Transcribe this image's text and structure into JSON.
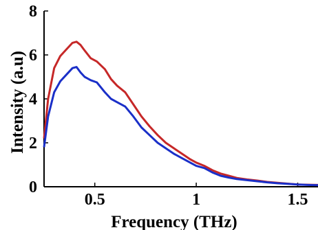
{
  "chart_data": {
    "type": "line",
    "title": "",
    "xlabel": "Frequency (THz)",
    "ylabel": "Intensity (a.u)",
    "xlim": [
      0.25,
      1.6
    ],
    "ylim": [
      0,
      8
    ],
    "xticks": [
      0.5,
      1,
      1.5
    ],
    "xtick_labels": [
      "0.5",
      "1",
      "1.5"
    ],
    "yticks": [
      0,
      2,
      4,
      6,
      8
    ],
    "ytick_labels": [
      "0",
      "2",
      "4",
      "6",
      "8"
    ],
    "grid": false,
    "legend": "none",
    "series": [
      {
        "color": "#c62828",
        "x": [
          0.25,
          0.27,
          0.3,
          0.33,
          0.36,
          0.39,
          0.41,
          0.43,
          0.45,
          0.48,
          0.51,
          0.55,
          0.58,
          0.61,
          0.65,
          0.69,
          0.73,
          0.77,
          0.81,
          0.85,
          0.89,
          0.93,
          0.97,
          1.0,
          1.04,
          1.08,
          1.12,
          1.16,
          1.2,
          1.25,
          1.3,
          1.35,
          1.4,
          1.45,
          1.5,
          1.55,
          1.6
        ],
        "y": [
          2.2,
          4.0,
          5.4,
          5.95,
          6.25,
          6.55,
          6.6,
          6.45,
          6.2,
          5.85,
          5.7,
          5.35,
          4.9,
          4.6,
          4.3,
          3.75,
          3.2,
          2.75,
          2.35,
          2.0,
          1.75,
          1.5,
          1.25,
          1.1,
          0.95,
          0.75,
          0.6,
          0.5,
          0.4,
          0.33,
          0.28,
          0.22,
          0.18,
          0.14,
          0.1,
          0.09,
          0.08
        ]
      },
      {
        "color": "#1a2fc8",
        "x": [
          0.25,
          0.27,
          0.3,
          0.33,
          0.36,
          0.39,
          0.41,
          0.43,
          0.45,
          0.48,
          0.51,
          0.55,
          0.58,
          0.61,
          0.65,
          0.69,
          0.73,
          0.77,
          0.81,
          0.85,
          0.89,
          0.93,
          0.97,
          1.0,
          1.04,
          1.08,
          1.12,
          1.16,
          1.2,
          1.25,
          1.3,
          1.35,
          1.4,
          1.45,
          1.5,
          1.55,
          1.6
        ],
        "y": [
          1.8,
          3.2,
          4.3,
          4.8,
          5.1,
          5.4,
          5.45,
          5.2,
          5.0,
          4.85,
          4.75,
          4.3,
          4.0,
          3.85,
          3.65,
          3.2,
          2.7,
          2.35,
          2.0,
          1.75,
          1.5,
          1.3,
          1.1,
          0.95,
          0.85,
          0.65,
          0.5,
          0.42,
          0.35,
          0.3,
          0.25,
          0.2,
          0.16,
          0.13,
          0.1,
          0.08,
          0.07
        ]
      }
    ]
  }
}
